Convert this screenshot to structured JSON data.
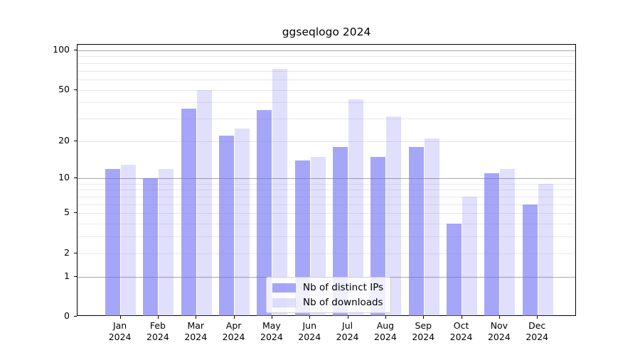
{
  "title": "ggseqlogo 2024",
  "colors": {
    "background": "#ffffff",
    "axis": "#000000",
    "major_grid": "#a6a6a6",
    "minor_grid": "#e8e8e8",
    "legend_border": "#d0d0d0",
    "bar_base": "#7070f6"
  },
  "chart_data": {
    "type": "bar",
    "title": "ggseqlogo 2024",
    "xlabel": "",
    "ylabel": "",
    "yscale": "log1p",
    "ylim": [
      0,
      111
    ],
    "grid": true,
    "legend_position": "bottom-center",
    "yticks": [
      0,
      1,
      2,
      5,
      10,
      20,
      50,
      100
    ],
    "major_gridlines": [
      1,
      10,
      100
    ],
    "minor_gridlines": [
      2,
      3,
      4,
      5,
      6,
      7,
      8,
      9,
      20,
      30,
      40,
      50,
      60,
      70,
      80,
      90
    ],
    "categories": [
      {
        "month": "Jan",
        "year": "2024"
      },
      {
        "month": "Feb",
        "year": "2024"
      },
      {
        "month": "Mar",
        "year": "2024"
      },
      {
        "month": "Apr",
        "year": "2024"
      },
      {
        "month": "May",
        "year": "2024"
      },
      {
        "month": "Jun",
        "year": "2024"
      },
      {
        "month": "Jul",
        "year": "2024"
      },
      {
        "month": "Aug",
        "year": "2024"
      },
      {
        "month": "Sep",
        "year": "2024"
      },
      {
        "month": "Oct",
        "year": "2024"
      },
      {
        "month": "Nov",
        "year": "2024"
      },
      {
        "month": "Dec",
        "year": "2024"
      }
    ],
    "series": [
      {
        "name": "Nb of distinct IPs",
        "color": "#7070f6",
        "alpha": 0.62,
        "values": [
          12,
          10,
          36,
          22,
          35,
          14,
          18,
          15,
          18,
          4,
          11,
          6
        ]
      },
      {
        "name": "Nb of downloads",
        "color": "#7070f6",
        "alpha": 0.22,
        "values": [
          13,
          12,
          50,
          25,
          72,
          15,
          42,
          31,
          21,
          7,
          12,
          9
        ]
      }
    ]
  }
}
